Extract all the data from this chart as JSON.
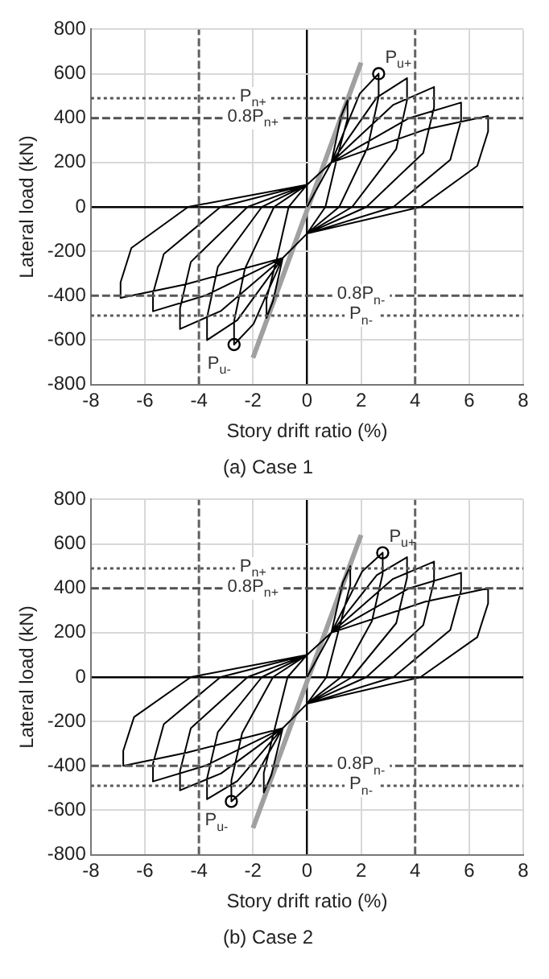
{
  "chart_data": [
    {
      "type": "line",
      "title": "(a) Case 1",
      "xlabel": "Story drift ratio (%)",
      "ylabel": "Lateral load (kN)",
      "xlim": [
        -8,
        8
      ],
      "xticks": [
        -8,
        -6,
        -4,
        -2,
        0,
        2,
        4,
        6,
        8
      ],
      "ylim": [
        -800,
        800
      ],
      "yticks": [
        -800,
        -600,
        -400,
        -200,
        0,
        200,
        400,
        600,
        800
      ],
      "grid": true,
      "legend": false,
      "series": [
        {
          "type": "line",
          "color": "#000000",
          "marker": "none",
          "x": [
            0,
            0.9,
            1.26,
            1.5,
            1.5,
            1.1,
            0.68,
            0,
            -0.9,
            -1.26,
            -1.5,
            -1.5,
            -1.1,
            -0.68,
            0,
            0.9,
            1.95,
            2.65,
            2.65,
            2.25,
            1.19,
            0,
            -0.9,
            -1.98,
            -2.7,
            -2.7,
            -2.3,
            -1.22,
            0,
            0.9,
            2.58,
            3.7,
            3.7,
            3.3,
            1.67,
            0,
            -0.9,
            -2.58,
            -3.7,
            -3.7,
            -3.3,
            -1.67,
            0,
            0.9,
            3.18,
            4.7,
            4.7,
            4.3,
            2.2,
            0,
            -0.9,
            -3.18,
            -4.7,
            -4.7,
            -4.3,
            -2.2,
            0,
            0.9,
            3.78,
            5.7,
            5.7,
            5.3,
            3.2,
            0,
            -0.9,
            -3.78,
            -5.7,
            -5.7,
            -5.3,
            -3.2,
            0,
            0.9,
            4.38,
            6.7,
            6.7,
            6.3,
            4.2,
            0,
            -0.9,
            -4.5,
            -6.9,
            -6.9,
            -6.5,
            -4.4,
            0
          ],
          "values": [
            0,
            200,
            408,
            480,
            398,
            216,
            0,
            -120,
            -230,
            -425,
            -500,
            -415,
            -225,
            0,
            100,
            200,
            510,
            600,
            498,
            270,
            0,
            -120,
            -230,
            -527,
            -620,
            -515,
            -279,
            0,
            100,
            200,
            493,
            580,
            481,
            261,
            0,
            -120,
            -230,
            -510,
            -600,
            -498,
            -270,
            0,
            100,
            200,
            459,
            540,
            448,
            243,
            0,
            -120,
            -230,
            -468,
            -550,
            -457,
            -248,
            0,
            100,
            200,
            400,
            470,
            390,
            212,
            0,
            -120,
            -230,
            -400,
            -470,
            -390,
            -212,
            0,
            100,
            200,
            349,
            410,
            340,
            185,
            0,
            -120,
            -230,
            -349,
            -410,
            -340,
            -185,
            0,
            100
          ]
        },
        {
          "type": "line",
          "color": "#a0a0a0",
          "marker": "none",
          "x": [
            -2,
            2
          ],
          "values": [
            -680,
            650
          ]
        },
        {
          "type": "scatter",
          "color": "#000000",
          "marker": "circle",
          "x": [
            2.65,
            -2.7
          ],
          "values": [
            600,
            -620
          ]
        }
      ],
      "ref_lines": [
        {
          "axis": "y",
          "value": 490,
          "label": "P$_{n+}$",
          "line_style": "dotted",
          "color": "#555555"
        },
        {
          "axis": "y",
          "value": 400,
          "label": "0.8P$_{n+}$",
          "line_style": "dashed",
          "color": "#505050"
        },
        {
          "axis": "y",
          "value": -400,
          "label": "0.8P$_{n-}$",
          "line_style": "dashed",
          "color": "#585858"
        },
        {
          "axis": "y",
          "value": -490,
          "label": "P$_{n-}$",
          "line_style": "dotted",
          "color": "#5b5b5b"
        },
        {
          "axis": "x",
          "value": -4,
          "line_style": "dashed",
          "color": "#606060"
        },
        {
          "axis": "x",
          "value": 4,
          "line_style": "dashed",
          "color": "#646464"
        }
      ],
      "annotations": [
        {
          "text": "P$_{u+}$",
          "x": 2.65,
          "y": 600
        },
        {
          "text": "P$_{u-}$",
          "x": -2.7,
          "y": -620
        }
      ]
    },
    {
      "type": "line",
      "title": "(b) Case 2",
      "xlabel": "Story drift ratio (%)",
      "ylabel": "Lateral load (kN)",
      "xlim": [
        -8,
        8
      ],
      "xticks": [
        -8,
        -6,
        -4,
        -2,
        0,
        2,
        4,
        6,
        8
      ],
      "ylim": [
        -800,
        800
      ],
      "yticks": [
        -800,
        -600,
        -400,
        -200,
        0,
        200,
        400,
        600,
        800
      ],
      "grid": true,
      "legend": false,
      "series": [
        {
          "type": "line",
          "color": "#000000",
          "marker": "none",
          "x": [
            0,
            0.9,
            1.32,
            1.6,
            1.6,
            1.2,
            0.72,
            0,
            -0.9,
            -1.32,
            -1.6,
            -1.6,
            -1.2,
            -0.72,
            0,
            0.9,
            2.04,
            2.8,
            2.8,
            2.4,
            1.26,
            0,
            -0.9,
            -2.04,
            -2.8,
            -2.8,
            -2.4,
            -1.26,
            0,
            0.9,
            2.58,
            3.7,
            3.7,
            3.3,
            1.67,
            0,
            -0.9,
            -2.58,
            -3.7,
            -3.7,
            -3.3,
            -1.67,
            0,
            0.9,
            3.18,
            4.7,
            4.7,
            4.3,
            2.2,
            0,
            -0.9,
            -3.18,
            -4.7,
            -4.7,
            -4.3,
            -2.2,
            0,
            0.9,
            3.78,
            5.7,
            5.7,
            5.3,
            3.2,
            0,
            -0.9,
            -3.78,
            -5.7,
            -5.7,
            -5.3,
            -3.2,
            0,
            0.9,
            4.38,
            6.7,
            6.7,
            6.3,
            4.2,
            0,
            -0.9,
            -4.44,
            -6.8,
            -6.8,
            -6.4,
            -4.3,
            0
          ],
          "values": [
            0,
            200,
            425,
            500,
            415,
            225,
            0,
            -120,
            -230,
            -442,
            -520,
            -432,
            -234,
            0,
            100,
            200,
            476,
            560,
            465,
            252,
            0,
            -120,
            -230,
            -476,
            -560,
            -465,
            -252,
            0,
            100,
            200,
            459,
            540,
            448,
            243,
            0,
            -120,
            -230,
            -468,
            -550,
            -457,
            -248,
            0,
            100,
            200,
            442,
            520,
            432,
            234,
            0,
            -120,
            -230,
            -434,
            -510,
            -423,
            -230,
            0,
            100,
            200,
            400,
            470,
            390,
            212,
            0,
            -120,
            -230,
            -400,
            -470,
            -390,
            -212,
            0,
            100,
            200,
            340,
            400,
            332,
            180,
            0,
            -120,
            -230,
            -340,
            -400,
            -332,
            -180,
            0,
            100
          ]
        },
        {
          "type": "line",
          "color": "#a0a0a0",
          "marker": "none",
          "x": [
            -2,
            2
          ],
          "values": [
            -680,
            640
          ]
        },
        {
          "type": "scatter",
          "color": "#000000",
          "marker": "circle",
          "x": [
            2.8,
            -2.8
          ],
          "values": [
            560,
            -560
          ]
        }
      ],
      "ref_lines": [
        {
          "axis": "y",
          "value": 490,
          "label": "P$_{n+}$",
          "line_style": "dotted",
          "color": "#555555"
        },
        {
          "axis": "y",
          "value": 400,
          "label": "0.8P$_{n+}$",
          "line_style": "dashed",
          "color": "#505050"
        },
        {
          "axis": "y",
          "value": -400,
          "label": "0.8P$_{n-}$",
          "line_style": "dashed",
          "color": "#585858"
        },
        {
          "axis": "y",
          "value": -490,
          "label": "P$_{n-}$",
          "line_style": "dotted",
          "color": "#5b5b5b"
        },
        {
          "axis": "x",
          "value": -4,
          "line_style": "dashed",
          "color": "#606060"
        },
        {
          "axis": "x",
          "value": 4,
          "line_style": "dashed",
          "color": "#646464"
        }
      ],
      "annotations": [
        {
          "text": "P$_{u+}$",
          "x": 2.8,
          "y": 560
        },
        {
          "text": "P$_{u-}$",
          "x": -2.8,
          "y": -560
        }
      ]
    }
  ]
}
